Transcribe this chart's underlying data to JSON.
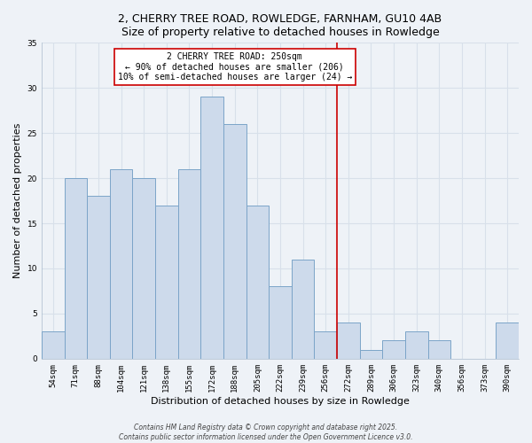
{
  "title": "2, CHERRY TREE ROAD, ROWLEDGE, FARNHAM, GU10 4AB",
  "subtitle": "Size of property relative to detached houses in Rowledge",
  "xlabel": "Distribution of detached houses by size in Rowledge",
  "ylabel": "Number of detached properties",
  "bar_labels": [
    "54sqm",
    "71sqm",
    "88sqm",
    "104sqm",
    "121sqm",
    "138sqm",
    "155sqm",
    "172sqm",
    "188sqm",
    "205sqm",
    "222sqm",
    "239sqm",
    "256sqm",
    "272sqm",
    "289sqm",
    "306sqm",
    "323sqm",
    "340sqm",
    "356sqm",
    "373sqm",
    "390sqm"
  ],
  "bar_values": [
    3,
    20,
    18,
    21,
    20,
    17,
    21,
    29,
    26,
    17,
    8,
    11,
    3,
    4,
    1,
    2,
    3,
    2,
    0,
    0,
    4
  ],
  "bar_color": "#cddaeb",
  "bar_edgecolor": "#7ba4c8",
  "vline_x": 12.5,
  "vline_color": "#cc0000",
  "annotation_title": "2 CHERRY TREE ROAD: 250sqm",
  "annotation_line1": "← 90% of detached houses are smaller (206)",
  "annotation_line2": "10% of semi-detached houses are larger (24) →",
  "ylim": [
    0,
    35
  ],
  "background_color": "#eef2f7",
  "grid_color": "#d8e0ea",
  "footer1": "Contains HM Land Registry data © Crown copyright and database right 2025.",
  "footer2": "Contains public sector information licensed under the Open Government Licence v3.0."
}
